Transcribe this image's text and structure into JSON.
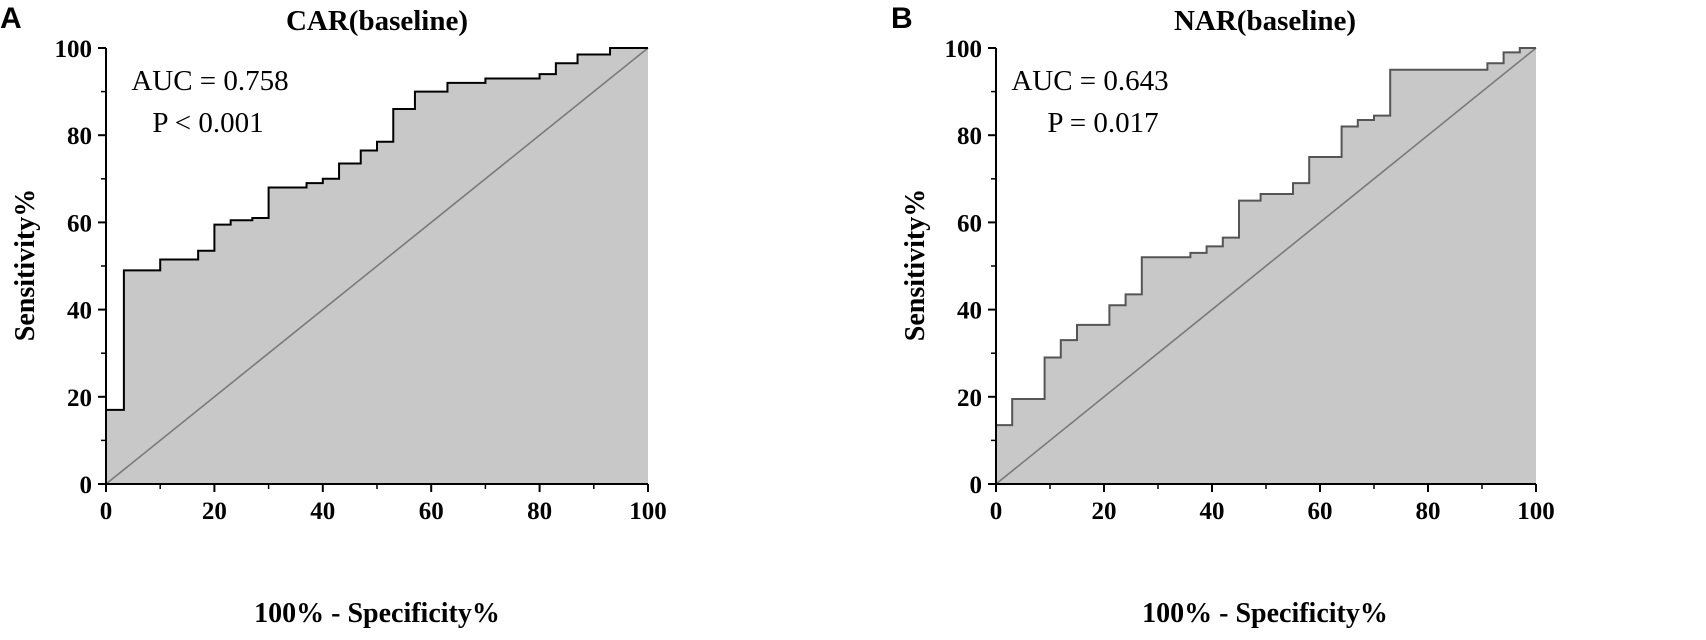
{
  "chart_data": [
    {
      "type": "line",
      "panel": "A",
      "title": "CAR(baseline)",
      "xlabel": "100% - Specificity%",
      "ylabel": "Sensitivity%",
      "xlim": [
        0,
        100
      ],
      "ylim": [
        0,
        100
      ],
      "xticks": [
        "0",
        "20",
        "40",
        "60",
        "80",
        "100"
      ],
      "yticks": [
        "0",
        "20",
        "40",
        "60",
        "80",
        "100"
      ],
      "annotations": [
        "AUC = 0.758",
        "P < 0.001"
      ],
      "grid": false,
      "colors": {
        "area": "#c8c8c8",
        "curve": "#000000",
        "reference": "#7a7a7a"
      },
      "series": [
        {
          "x": [
            0,
            3.3,
            3.3,
            10,
            10,
            17,
            17,
            20,
            20,
            23,
            23,
            27,
            27,
            30,
            30,
            37,
            37,
            40,
            40,
            43,
            43,
            47,
            47,
            50,
            50,
            53,
            53,
            57,
            57,
            63,
            63,
            70,
            70,
            80,
            80,
            83,
            83,
            87,
            87,
            93,
            93,
            100
          ],
          "y": [
            17,
            17,
            49,
            49,
            51.5,
            51.5,
            53.5,
            53.5,
            59.5,
            59.5,
            60.5,
            60.5,
            61,
            61,
            68,
            68,
            69,
            69,
            70,
            70,
            73.5,
            73.5,
            76.5,
            76.5,
            78.5,
            78.5,
            86,
            86,
            90,
            90,
            92,
            92,
            93,
            93,
            94,
            94,
            96.5,
            96.5,
            98.5,
            98.5,
            100,
            100
          ]
        },
        {
          "x": [
            0,
            100
          ],
          "y": [
            0,
            100
          ]
        }
      ]
    },
    {
      "type": "line",
      "panel": "B",
      "title": "NAR(baseline)",
      "xlabel": "100% - Specificity%",
      "ylabel": "Sensitivity%",
      "xlim": [
        0,
        100
      ],
      "ylim": [
        0,
        100
      ],
      "xticks": [
        "0",
        "20",
        "40",
        "60",
        "80",
        "100"
      ],
      "yticks": [
        "0",
        "20",
        "40",
        "60",
        "80",
        "100"
      ],
      "annotations": [
        "AUC = 0.643",
        "P = 0.017"
      ],
      "grid": false,
      "colors": {
        "area": "#c8c8c8",
        "curve": "#555555",
        "reference": "#7a7a7a"
      },
      "series": [
        {
          "x": [
            0,
            3,
            3,
            9,
            9,
            12,
            12,
            15,
            15,
            21,
            21,
            24,
            24,
            27,
            27,
            36,
            36,
            39,
            39,
            42,
            42,
            45,
            45,
            49,
            49,
            55,
            55,
            58,
            58,
            64,
            64,
            67,
            67,
            70,
            70,
            73,
            73,
            91,
            91,
            94,
            94,
            97,
            97,
            100
          ],
          "y": [
            13.5,
            13.5,
            19.5,
            19.5,
            29,
            29,
            33,
            33,
            36.5,
            36.5,
            41,
            41,
            43.5,
            43.5,
            52,
            52,
            53,
            53,
            54.5,
            54.5,
            56.5,
            56.5,
            65,
            65,
            66.5,
            66.5,
            69,
            69,
            75,
            75,
            82,
            82,
            83.5,
            83.5,
            84.5,
            84.5,
            95,
            95,
            96.5,
            96.5,
            99,
            99,
            100,
            100
          ]
        },
        {
          "x": [
            0,
            100
          ],
          "y": [
            0,
            100
          ]
        }
      ]
    }
  ]
}
